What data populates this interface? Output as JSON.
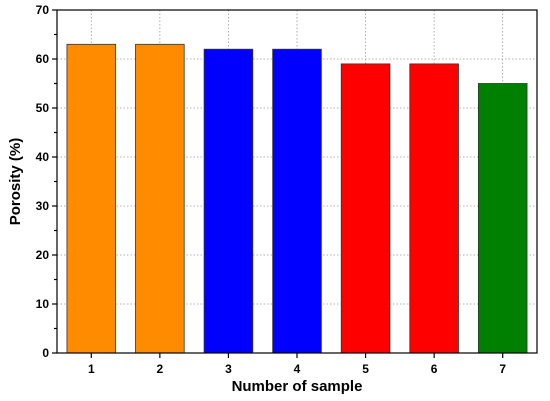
{
  "chart_data": {
    "type": "bar",
    "title": "",
    "xlabel": "Number of sample",
    "ylabel": "Porosity (%)",
    "categories": [
      "1",
      "2",
      "3",
      "4",
      "5",
      "6",
      "7"
    ],
    "values": [
      63,
      63,
      62,
      62,
      59,
      59,
      55
    ],
    "bar_colors": [
      "#ff8c00",
      "#ff8c00",
      "#0000ff",
      "#0000ff",
      "#ff0000",
      "#ff0000",
      "#008000"
    ],
    "ylim": [
      0,
      70
    ],
    "y_ticks": [
      "0",
      "10",
      "20",
      "30",
      "40",
      "50",
      "60",
      "70"
    ],
    "grid": true
  }
}
